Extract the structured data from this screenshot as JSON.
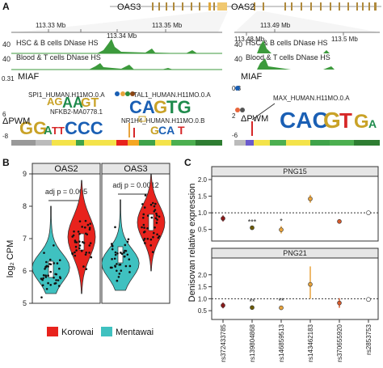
{
  "panels": {
    "a": {
      "label": "A",
      "gene_left": "OAS3",
      "gene_right": "OAS2",
      "coords_left": [
        "113.33 Mb",
        "113.34 Mb",
        "113.35 Mb"
      ],
      "coords_right": [
        "113.49 Mb",
        "113.48 Mb",
        "113.5 Mb"
      ],
      "track1_max": "40",
      "track1_label": "HSC & B cells DNase HS",
      "track2_max": "40",
      "track2_label": "Blood & T cells DNase HS",
      "miaf_label": "MIAF",
      "miaf_top": "0.31",
      "miaf_right_top": "0.3",
      "delta_pwm_label": "ΔPWM",
      "pwm_top": "6",
      "pwm_bottom": "-8",
      "pwm_right_top": "2",
      "pwm_right_bottom": "-6",
      "motifs": {
        "spi1": "SPI1_HUMAN.H11MO.0.A",
        "tal1": "TAL1_HUMAN.H11MO.0.A",
        "nfkb2": "NFKB2-MA0778.1",
        "nr1h4": "NR1H4_HUMAN.H11MO.0.B",
        "max": "MAX_HUMAN.H11MO.0.A"
      }
    },
    "b": {
      "label": "B",
      "ylabel": "log₂ CPM",
      "ymin": 5,
      "ymax": 9,
      "yticks": [
        "5",
        "6",
        "7",
        "8",
        "9"
      ],
      "facet_left": "OAS2",
      "facet_right": "OAS3",
      "pval_left": "adj p = 0.005",
      "pval_right": "adj p = 0.0012",
      "legend": [
        "Korowai",
        "Mentawai"
      ],
      "colors": {
        "korowai": "#e8231d",
        "mentawai": "#3fc1c0"
      }
    },
    "c": {
      "label": "C",
      "ylabel": "Denisovan relative expression",
      "top_title": "PNG15",
      "bottom_title": "PNG21",
      "yticks": [
        "0.5",
        "1.0",
        "1.5",
        "2.0"
      ],
      "snps": [
        "rs372433785",
        "rs139804868",
        "rs146859513",
        "rs143462183",
        "rs370655920",
        "rs2853753"
      ],
      "sig_top": [
        "",
        "***",
        "*",
        "",
        "",
        ""
      ],
      "sig_bottom": [
        "",
        "**",
        "**",
        "",
        "",
        ""
      ]
    }
  },
  "chart_data": [
    {
      "type": "violin",
      "title": "OAS2",
      "ylabel": "log₂ CPM",
      "ylim": [
        5,
        9
      ],
      "categories": [
        "Mentawai",
        "Korowai"
      ],
      "medians": [
        6.05,
        6.9
      ],
      "annotation": "adj p = 0.005"
    },
    {
      "type": "violin",
      "title": "OAS3",
      "ylabel": "log₂ CPM",
      "ylim": [
        5,
        9
      ],
      "categories": [
        "Mentawai",
        "Korowai"
      ],
      "medians": [
        6.5,
        7.5
      ],
      "annotation": "adj p = 0.0012"
    },
    {
      "type": "scatter",
      "title": "PNG15",
      "ylabel": "Denisovan relative expression",
      "ylim": [
        0.2,
        2.0
      ],
      "categories": [
        "rs372433785",
        "rs139804868",
        "rs146859513",
        "rs143462183",
        "rs370655920",
        "rs2853753"
      ],
      "values": [
        0.83,
        0.55,
        0.49,
        1.42,
        0.74,
        1.0
      ],
      "low": [
        0.74,
        0.52,
        0.38,
        1.3,
        0.68,
        0.98
      ],
      "high": [
        0.92,
        0.58,
        0.6,
        1.54,
        0.8,
        1.02
      ]
    },
    {
      "type": "scatter",
      "title": "PNG21",
      "ylabel": "Denisovan relative expression",
      "ylim": [
        0.2,
        2.6
      ],
      "categories": [
        "rs372433785",
        "rs139804868",
        "rs146859513",
        "rs143462183",
        "rs370655920",
        "rs2853753"
      ],
      "values": [
        0.72,
        0.63,
        0.62,
        1.6,
        0.82,
        0.97
      ],
      "low": [
        0.6,
        0.58,
        0.55,
        1.0,
        0.62,
        0.9
      ],
      "high": [
        0.84,
        0.68,
        0.7,
        2.35,
        1.02,
        1.05
      ]
    }
  ]
}
